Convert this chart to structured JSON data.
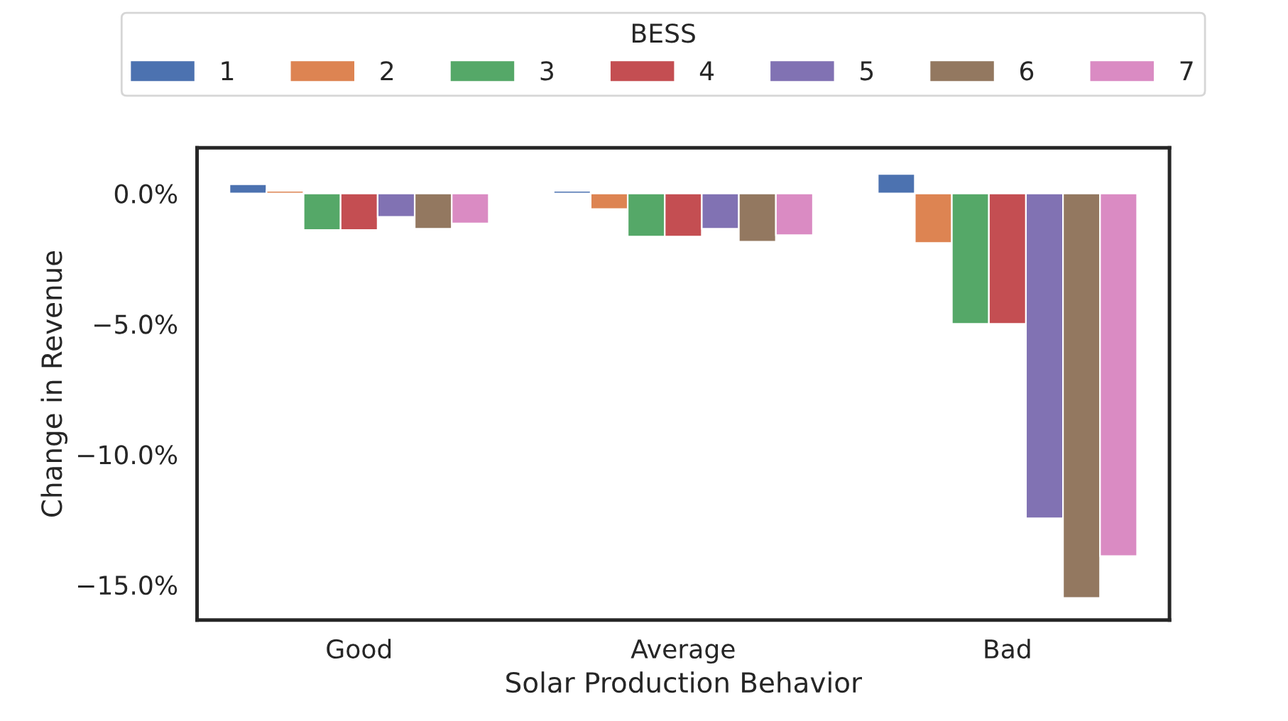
{
  "chart_data": {
    "type": "bar",
    "xlabel": "Solar Production Behavior",
    "ylabel": "Change in Revenue",
    "legend_title": "BESS",
    "legend": "top",
    "categories": [
      "Good",
      "Average",
      "Bad"
    ],
    "series": [
      {
        "name": "1",
        "color": "#4c72b0",
        "values": [
          0.35,
          0.1,
          0.75
        ]
      },
      {
        "name": "2",
        "color": "#dd8452",
        "values": [
          0.1,
          -0.6,
          -1.9
        ]
      },
      {
        "name": "3",
        "color": "#55a868",
        "values": [
          -1.4,
          -1.65,
          -5.0
        ]
      },
      {
        "name": "4",
        "color": "#c44e52",
        "values": [
          -1.4,
          -1.65,
          -5.0
        ]
      },
      {
        "name": "5",
        "color": "#8172b3",
        "values": [
          -0.9,
          -1.35,
          -12.45
        ]
      },
      {
        "name": "6",
        "color": "#937860",
        "values": [
          -1.35,
          -1.85,
          -15.5
        ]
      },
      {
        "name": "7",
        "color": "#da8bc3",
        "values": [
          -1.15,
          -1.6,
          -13.9
        ]
      }
    ],
    "ylim": [
      -16.35,
      1.75
    ],
    "yticks": [
      {
        "value": 0,
        "label": "0.0%"
      },
      {
        "value": -5,
        "label": "−5.0%"
      },
      {
        "value": -10,
        "label": "−10.0%"
      },
      {
        "value": -15,
        "label": "−15.0%"
      }
    ],
    "grid": false
  }
}
